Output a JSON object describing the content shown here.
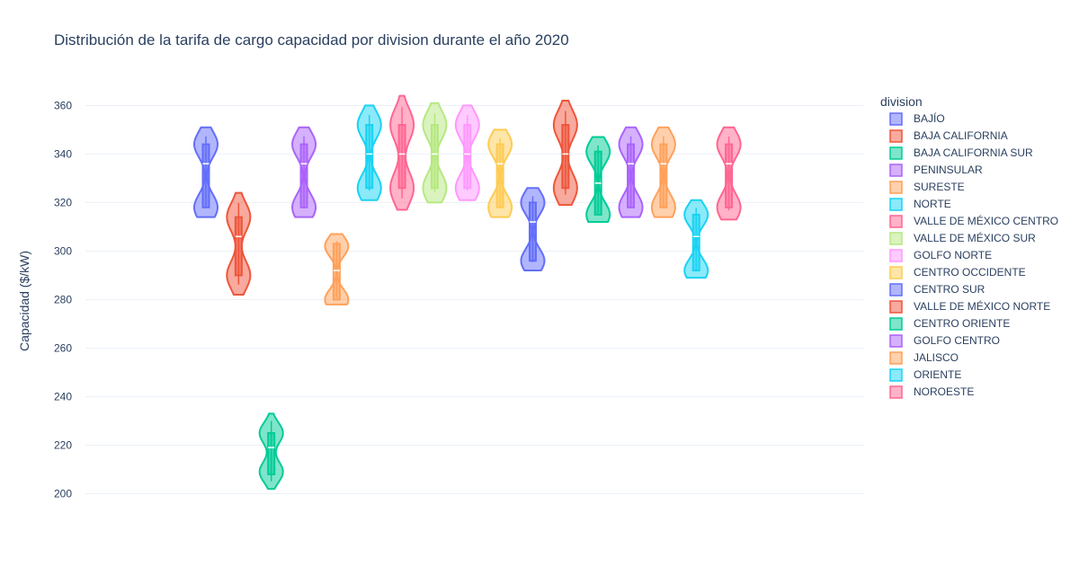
{
  "chart_data": {
    "type": "violin",
    "title": "Distribución de la tarifa de cargo capacidad por division durante el año 2020",
    "xlabel": "",
    "ylabel": "Capacidad ($/kW)",
    "ylim": [
      185,
      372
    ],
    "yticks": [
      200,
      220,
      240,
      260,
      280,
      300,
      320,
      340,
      360
    ],
    "grid": true,
    "legend": {
      "title": "division",
      "placement": "right"
    },
    "series": [
      {
        "name": "BAJÍO",
        "color": "#636efa",
        "min": 314,
        "max": 351,
        "q1": 318,
        "median": 336,
        "q3": 344,
        "modes": [
          318,
          344
        ]
      },
      {
        "name": "BAJA CALIFORNIA",
        "color": "#ef553b",
        "min": 282,
        "max": 324,
        "q1": 290,
        "median": 306,
        "q3": 314,
        "modes": [
          290,
          314
        ]
      },
      {
        "name": "BAJA CALIFORNIA SUR",
        "color": "#00cc96",
        "min": 202,
        "max": 233,
        "q1": 208,
        "median": 219,
        "q3": 225,
        "modes": [
          209,
          225
        ]
      },
      {
        "name": "PENINSULAR",
        "color": "#ab63fa",
        "min": 314,
        "max": 351,
        "q1": 318,
        "median": 336,
        "q3": 344,
        "modes": [
          318,
          344
        ]
      },
      {
        "name": "SURESTE",
        "color": "#ffa15a",
        "min": 278,
        "max": 307,
        "q1": 280,
        "median": 292,
        "q3": 303,
        "modes": [
          280,
          302
        ]
      },
      {
        "name": "NORTE",
        "color": "#19d3f3",
        "min": 321,
        "max": 360,
        "q1": 326,
        "median": 340,
        "q3": 352,
        "modes": [
          326,
          352
        ]
      },
      {
        "name": "VALLE DE MÉXICO CENTRO",
        "color": "#ff6692",
        "min": 317,
        "max": 364,
        "q1": 326,
        "median": 340,
        "q3": 352,
        "modes": [
          326,
          352
        ]
      },
      {
        "name": "VALLE DE MÉXICO SUR",
        "color": "#b6e880",
        "min": 320,
        "max": 361,
        "q1": 326,
        "median": 340,
        "q3": 352,
        "modes": [
          326,
          352
        ]
      },
      {
        "name": "GOLFO NORTE",
        "color": "#ff97ff",
        "min": 321,
        "max": 360,
        "q1": 326,
        "median": 340,
        "q3": 352,
        "modes": [
          326,
          352
        ]
      },
      {
        "name": "CENTRO OCCIDENTE",
        "color": "#fecb52",
        "min": 314,
        "max": 350,
        "q1": 318,
        "median": 336,
        "q3": 344,
        "modes": [
          318,
          344
        ]
      },
      {
        "name": "CENTRO SUR",
        "color": "#636efa",
        "min": 292,
        "max": 326,
        "q1": 296,
        "median": 312,
        "q3": 320,
        "modes": [
          296,
          320
        ]
      },
      {
        "name": "VALLE DE MÉXICO NORTE",
        "color": "#ef553b",
        "min": 319,
        "max": 362,
        "q1": 326,
        "median": 340,
        "q3": 352,
        "modes": [
          326,
          352
        ]
      },
      {
        "name": "CENTRO ORIENTE",
        "color": "#00cc96",
        "min": 312,
        "max": 347,
        "q1": 315,
        "median": 328,
        "q3": 341,
        "modes": [
          315,
          341
        ]
      },
      {
        "name": "GOLFO CENTRO",
        "color": "#ab63fa",
        "min": 314,
        "max": 351,
        "q1": 318,
        "median": 336,
        "q3": 344,
        "modes": [
          318,
          344
        ]
      },
      {
        "name": "JALISCO",
        "color": "#ffa15a",
        "min": 314,
        "max": 351,
        "q1": 318,
        "median": 336,
        "q3": 344,
        "modes": [
          318,
          344
        ]
      },
      {
        "name": "ORIENTE",
        "color": "#19d3f3",
        "min": 289,
        "max": 321,
        "q1": 292,
        "median": 306,
        "q3": 315,
        "modes": [
          292,
          315
        ]
      },
      {
        "name": "NOROESTE",
        "color": "#ff6692",
        "min": 313,
        "max": 351,
        "q1": 318,
        "median": 336,
        "q3": 344,
        "modes": [
          318,
          344
        ]
      }
    ]
  }
}
